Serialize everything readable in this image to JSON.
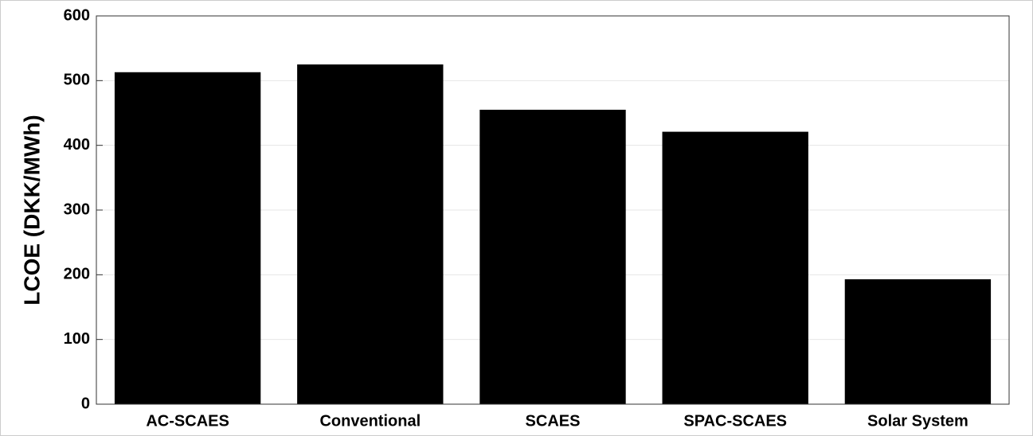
{
  "chart_data": {
    "type": "bar",
    "y_label": "LCOE (DKK/MWh)",
    "categories": [
      "AC-SCAES",
      "Conventional",
      "SCAES",
      "SPAC-SCAES",
      "Solar System"
    ],
    "values": [
      513,
      525,
      455,
      421,
      193
    ],
    "color": "#000000",
    "ylim": [
      0,
      600
    ],
    "yticks": [
      0,
      100,
      200,
      300,
      400,
      500,
      600
    ],
    "grid": true
  }
}
